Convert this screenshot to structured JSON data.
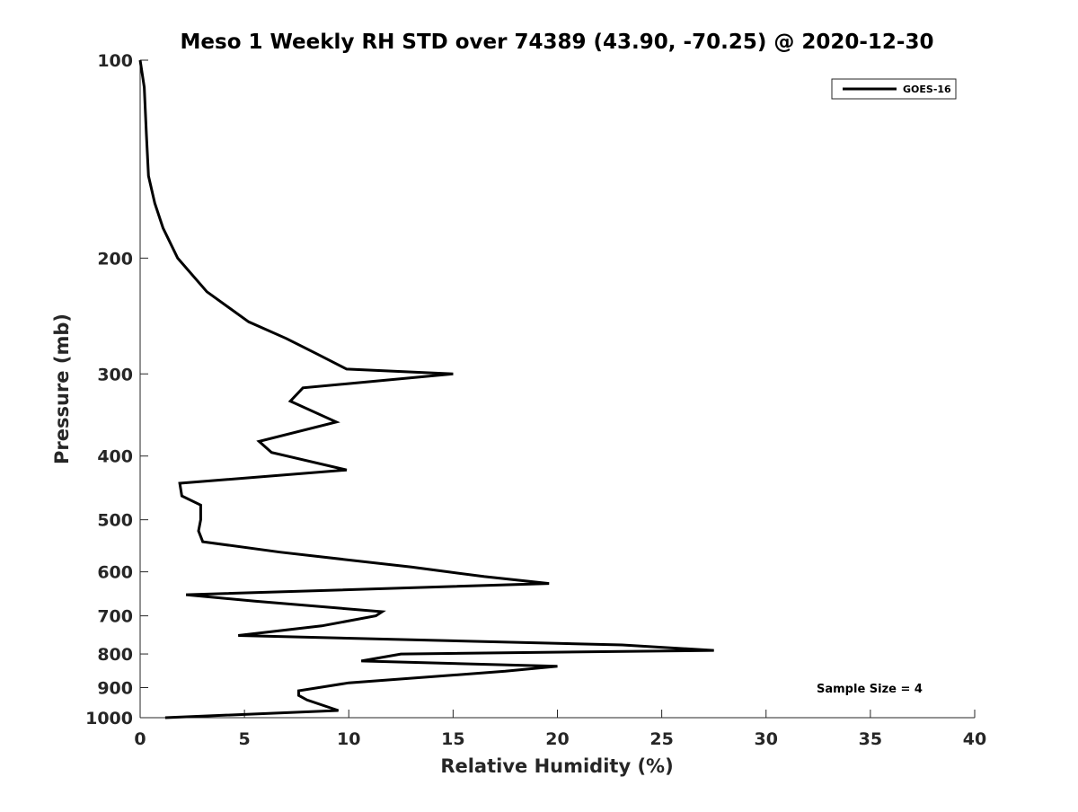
{
  "chart_data": {
    "type": "line",
    "title": "Meso 1 Weekly RH STD over 74389 (43.90, -70.25) @ 2020-12-30",
    "xlabel": "Relative Humidity (%)",
    "ylabel": "Pressure (mb)",
    "xlim": [
      0,
      40
    ],
    "ylim": [
      100,
      1000
    ],
    "y_scale": "log",
    "y_reversed": true,
    "grid": false,
    "legend_position": "top-right",
    "x_ticks": [
      "0",
      "5",
      "10",
      "15",
      "20",
      "25",
      "30",
      "35",
      "40"
    ],
    "y_ticks": [
      "100",
      "200",
      "300",
      "400",
      "500",
      "600",
      "700",
      "800",
      "900",
      "1000"
    ],
    "annotation": "Sample Size = 4",
    "series": [
      {
        "name": "GOES-16",
        "color": "#000000",
        "x": [
          0.0,
          0.2,
          0.3,
          0.4,
          0.7,
          1.1,
          1.8,
          3.2,
          5.2,
          7.0,
          8.5,
          9.9,
          15.0,
          7.8,
          7.2,
          9.4,
          5.7,
          6.3,
          9.9,
          1.9,
          2.0,
          2.9,
          2.9,
          2.8,
          3.0,
          6.7,
          13.0,
          16.5,
          19.6,
          2.2,
          5.5,
          11.6,
          11.3,
          8.7,
          4.7,
          23.1,
          27.5,
          12.5,
          10.6,
          20.0,
          17.5,
          10.0,
          7.6,
          7.6,
          8.0,
          9.5,
          1.2
        ],
        "y": [
          100,
          110,
          130,
          150,
          165,
          180,
          200,
          225,
          250,
          265,
          280,
          295,
          300,
          315,
          330,
          355,
          380,
          395,
          420,
          440,
          460,
          475,
          500,
          520,
          540,
          560,
          590,
          610,
          625,
          650,
          665,
          690,
          700,
          725,
          750,
          775,
          790,
          800,
          820,
          835,
          850,
          885,
          910,
          925,
          940,
          975,
          1000
        ]
      }
    ]
  }
}
